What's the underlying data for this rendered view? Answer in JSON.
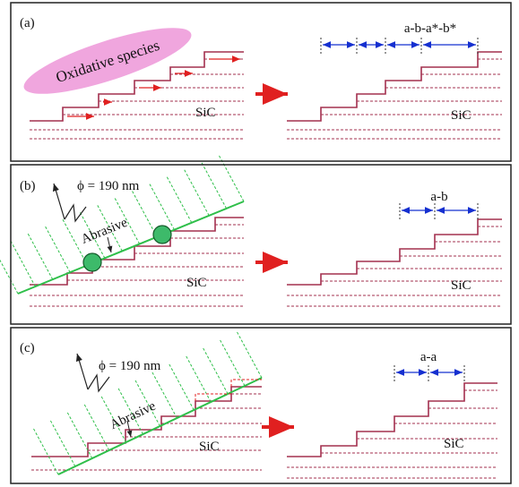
{
  "panels": [
    {
      "label": "(a)",
      "species": "Oxidative species",
      "left_material": "SiC",
      "right_material": "SiC",
      "step_label": "a-b-a*-b*"
    },
    {
      "label": "(b)",
      "wavelength": "ϕ = 190 nm",
      "abrasive": "Abrasive",
      "left_material": "SiC",
      "right_material": "SiC",
      "step_label": "a-b"
    },
    {
      "label": "(c)",
      "wavelength": "ϕ = 190 nm",
      "abrasive": "Abrasive",
      "left_material": "SiC",
      "right_material": "SiC",
      "step_label": "a-a"
    }
  ]
}
